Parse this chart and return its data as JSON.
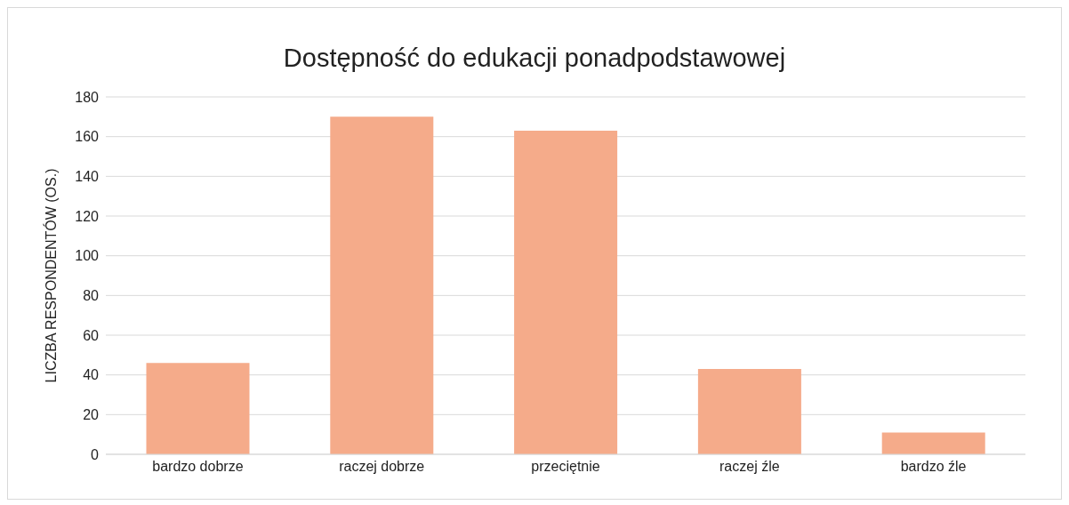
{
  "chart_data": {
    "type": "bar",
    "title": "Dostępność do edukacji ponadpodstawowej",
    "ylabel": "LICZBA RESPONDENTÓW (OS.)",
    "categories": [
      "bardzo dobrze",
      "raczej dobrze",
      "przeciętnie",
      "raczej źle",
      "bardzo źle"
    ],
    "values": [
      46,
      170,
      163,
      43,
      11
    ],
    "color": "#f5ab8a",
    "ylim": [
      0,
      180
    ],
    "yticks": [
      0,
      20,
      40,
      60,
      80,
      100,
      120,
      140,
      160,
      180
    ],
    "grid": "y"
  }
}
